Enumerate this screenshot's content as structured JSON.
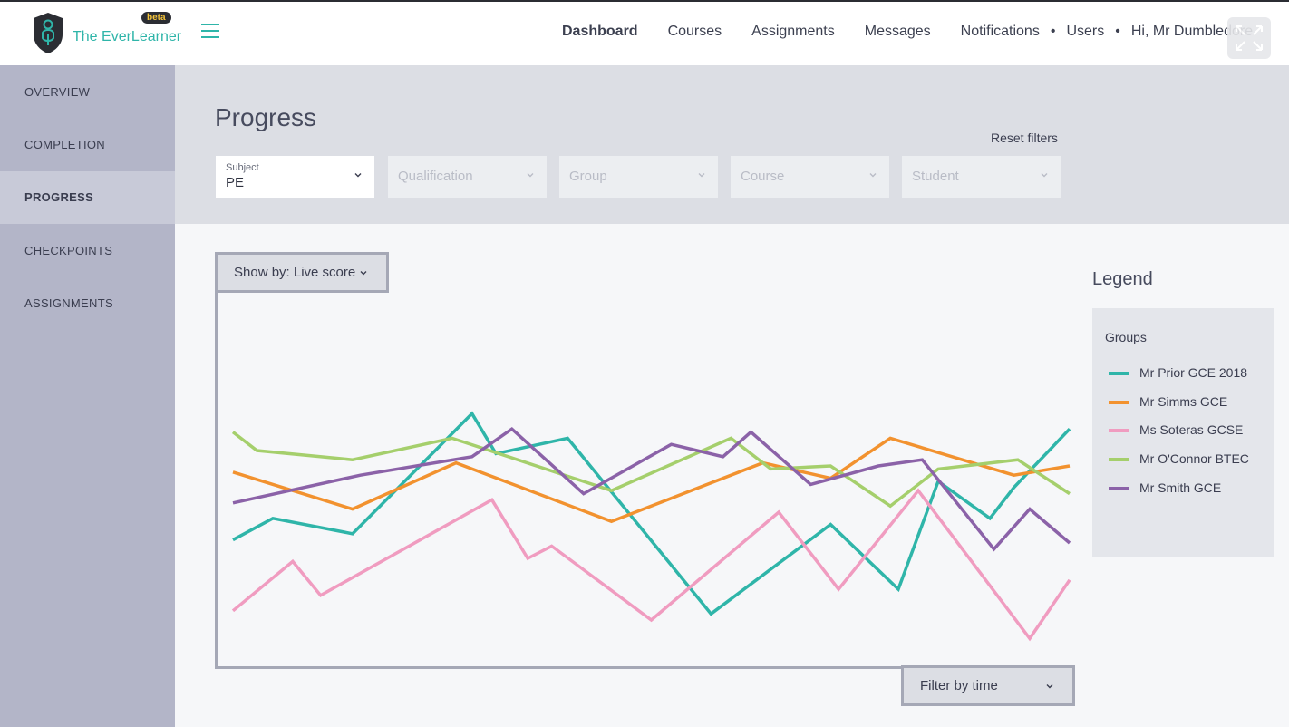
{
  "app": {
    "logo_text": "The EverLearner",
    "beta_badge": "beta"
  },
  "nav": {
    "items": [
      "Dashboard",
      "Courses",
      "Assignments",
      "Messages",
      "Notifications"
    ],
    "users": "Users",
    "greeting": "Hi, Mr Dumbledore",
    "active": "Dashboard"
  },
  "sidebar": {
    "items": [
      "OVERVIEW",
      "COMPLETION",
      "PROGRESS",
      "CHECKPOINTS",
      "ASSIGNMENTS"
    ],
    "active": "PROGRESS"
  },
  "page": {
    "title": "Progress",
    "reset_filters": "Reset filters"
  },
  "filters": [
    {
      "label": "Subject",
      "value": "PE"
    },
    {
      "placeholder": "Qualification"
    },
    {
      "placeholder": "Group"
    },
    {
      "placeholder": "Course"
    },
    {
      "placeholder": "Student"
    }
  ],
  "controls": {
    "show_by": "Show by: Live score",
    "filter_time": "Filter by time"
  },
  "legend": {
    "title": "Legend",
    "subtitle": "Groups"
  },
  "colors": {
    "teal": "#2fb5a9",
    "orange": "#f2922f",
    "pink": "#f09cc0",
    "lime": "#a5cf6c",
    "purple": "#8b62a8"
  },
  "chart_data": {
    "type": "line",
    "xlabel": "",
    "ylabel": "",
    "grid": false,
    "legend_position": "right",
    "x": [
      0,
      1,
      2,
      3,
      4,
      5,
      6,
      7,
      8,
      9,
      10,
      11,
      12,
      13,
      14,
      15,
      16,
      17,
      18,
      19,
      20,
      21
    ],
    "ylim": [
      0,
      100
    ],
    "series": [
      {
        "name": "Mr Prior GCE 2018",
        "color": "#2fb5a9",
        "x": [
          0,
          1,
          3,
          6,
          6.6,
          8.4,
          12,
          15,
          16.7,
          17.7,
          19,
          19.6,
          21
        ],
        "values": [
          41,
          48,
          43,
          82,
          69,
          74,
          17,
          46,
          25,
          60,
          48,
          58,
          77
        ]
      },
      {
        "name": "Mr Simms GCE",
        "color": "#f2922f",
        "x": [
          0,
          3,
          5.6,
          9.5,
          13.3,
          15,
          16.5,
          19.6,
          21
        ],
        "values": [
          63,
          51,
          66,
          47,
          66,
          61,
          74,
          62,
          65
        ]
      },
      {
        "name": "Ms Soteras GCSE",
        "color": "#f09cc0",
        "x": [
          0,
          1.5,
          2.2,
          6.5,
          7.4,
          8,
          10.5,
          13.7,
          15.2,
          17.2,
          20,
          21
        ],
        "values": [
          18,
          34,
          23,
          54,
          35,
          39,
          15,
          50,
          25,
          57,
          9,
          28
        ]
      },
      {
        "name": "Mr O'Connor BTEC",
        "color": "#a5cf6c",
        "x": [
          0,
          0.6,
          3,
          5.5,
          9.5,
          12.5,
          13.5,
          15,
          16.5,
          17.7,
          19.7,
          21
        ],
        "values": [
          76,
          70,
          67,
          74,
          57,
          74,
          64,
          65,
          52,
          64,
          67,
          56
        ]
      },
      {
        "name": "Mr Smith GCE",
        "color": "#8b62a8",
        "x": [
          0,
          3.2,
          6,
          7,
          8.8,
          11,
          12.3,
          13,
          14.5,
          16.2,
          17.3,
          19.1,
          20,
          21
        ],
        "values": [
          53,
          62,
          68,
          77,
          56,
          72,
          68,
          76,
          59,
          65,
          67,
          38,
          51,
          40
        ]
      }
    ]
  }
}
